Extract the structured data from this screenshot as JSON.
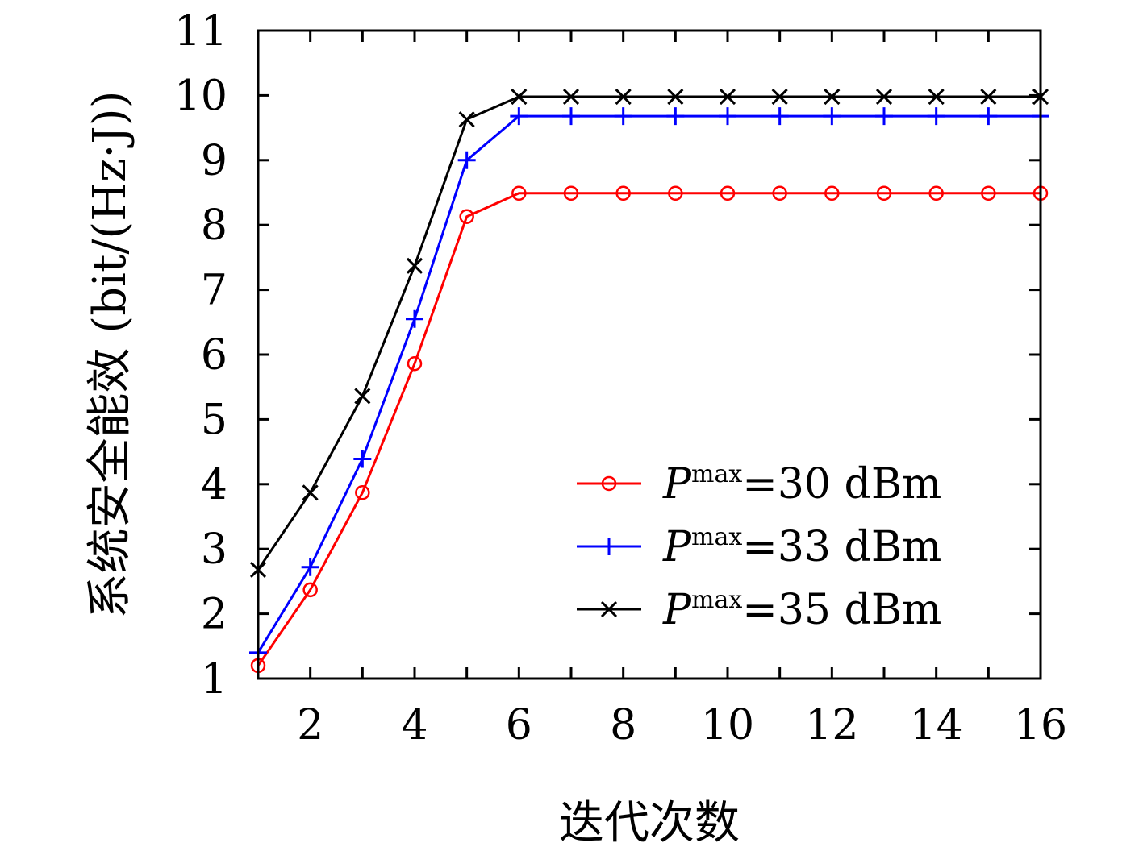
{
  "chart_data": {
    "type": "line",
    "xlabel": "迭代次数",
    "ylabel": "系统安全能效 (bit/(Hz·J))",
    "xlim": [
      1,
      16
    ],
    "ylim": [
      1,
      11
    ],
    "xticks": [
      2,
      4,
      6,
      8,
      10,
      12,
      14,
      16
    ],
    "yticks": [
      1,
      2,
      3,
      4,
      5,
      6,
      7,
      8,
      9,
      10,
      11
    ],
    "legend_position": "lower-right",
    "x": [
      1,
      2,
      3,
      4,
      5,
      6,
      7,
      8,
      9,
      10,
      11,
      12,
      13,
      14,
      15,
      16
    ],
    "series": [
      {
        "name": "Pmax=30 dBm",
        "legend_p": "P",
        "legend_sup": "max",
        "legend_rest": "=30 dBm",
        "color": "#ff0000",
        "marker": "circle",
        "values": [
          1.2,
          2.37,
          3.87,
          5.86,
          8.13,
          8.49,
          8.49,
          8.49,
          8.49,
          8.49,
          8.49,
          8.49,
          8.49,
          8.49,
          8.49,
          8.49
        ]
      },
      {
        "name": "Pmax=33 dBm",
        "legend_p": "P",
        "legend_sup": "max",
        "legend_rest": "=33 dBm",
        "color": "#0000ff",
        "marker": "plus",
        "values": [
          1.4,
          2.72,
          4.39,
          6.55,
          9.0,
          9.68,
          9.68,
          9.68,
          9.68,
          9.68,
          9.68,
          9.68,
          9.68,
          9.68,
          9.68,
          9.68
        ]
      },
      {
        "name": "Pmax=35 dBm",
        "legend_p": "P",
        "legend_sup": "max",
        "legend_rest": "=35 dBm",
        "color": "#000000",
        "marker": "cross",
        "values": [
          2.68,
          3.87,
          5.36,
          7.37,
          9.63,
          9.98,
          9.98,
          9.98,
          9.98,
          9.98,
          9.98,
          9.98,
          9.98,
          9.98,
          9.98,
          9.98
        ]
      }
    ]
  }
}
